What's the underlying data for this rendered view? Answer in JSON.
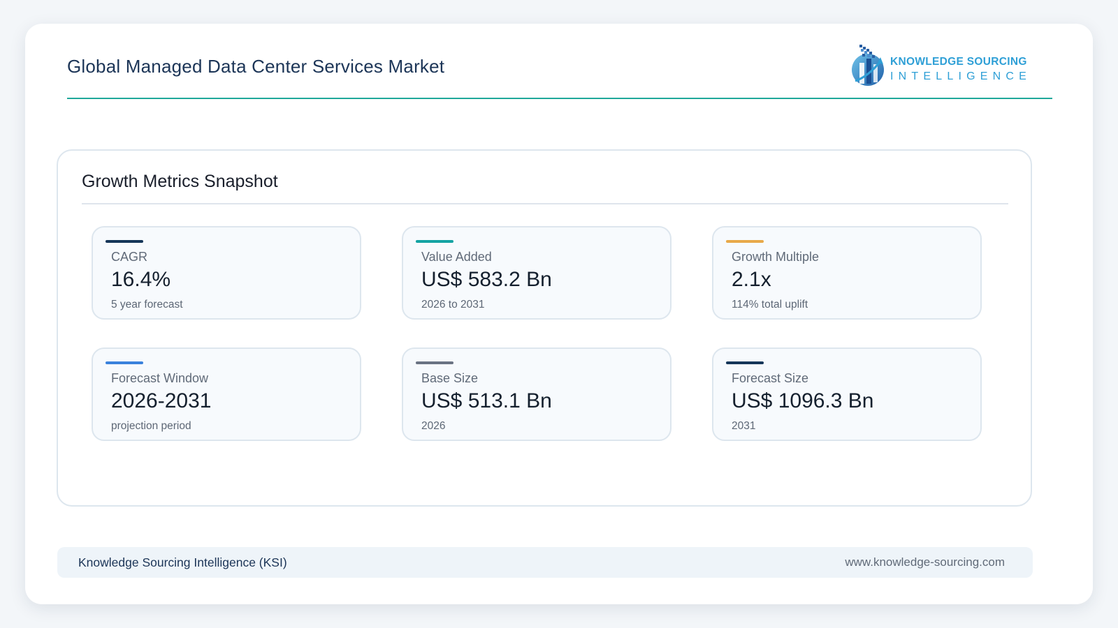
{
  "header": {
    "title": "Global Managed Data Center Services Market",
    "logo": {
      "line1": "KNOWLEDGE SOURCING",
      "line2": "INTELLIGENCE",
      "color": "#2e9fd6"
    }
  },
  "panel": {
    "title": "Growth Metrics Snapshot",
    "metrics": [
      {
        "label": "CAGR",
        "value": "16.4%",
        "sub": "5 year forecast",
        "accent": "#153659"
      },
      {
        "label": "Value Added",
        "value": "US$ 583.2 Bn",
        "sub": "2026 to 2031",
        "accent": "#14a3a3"
      },
      {
        "label": "Growth Multiple",
        "value": "2.1x",
        "sub": "114% total uplift",
        "accent": "#e8a94a"
      },
      {
        "label": "Forecast Window",
        "value": "2026-2031",
        "sub": "projection period",
        "accent": "#3a82dc"
      },
      {
        "label": "Base Size",
        "value": "US$ 513.1 Bn",
        "sub": "2026",
        "accent": "#6a7383"
      },
      {
        "label": "Forecast Size",
        "value": "US$ 1096.3 Bn",
        "sub": "2031",
        "accent": "#153659"
      }
    ]
  },
  "footer": {
    "left": "Knowledge Sourcing Intelligence (KSI)",
    "right": "www.knowledge-sourcing.com"
  }
}
